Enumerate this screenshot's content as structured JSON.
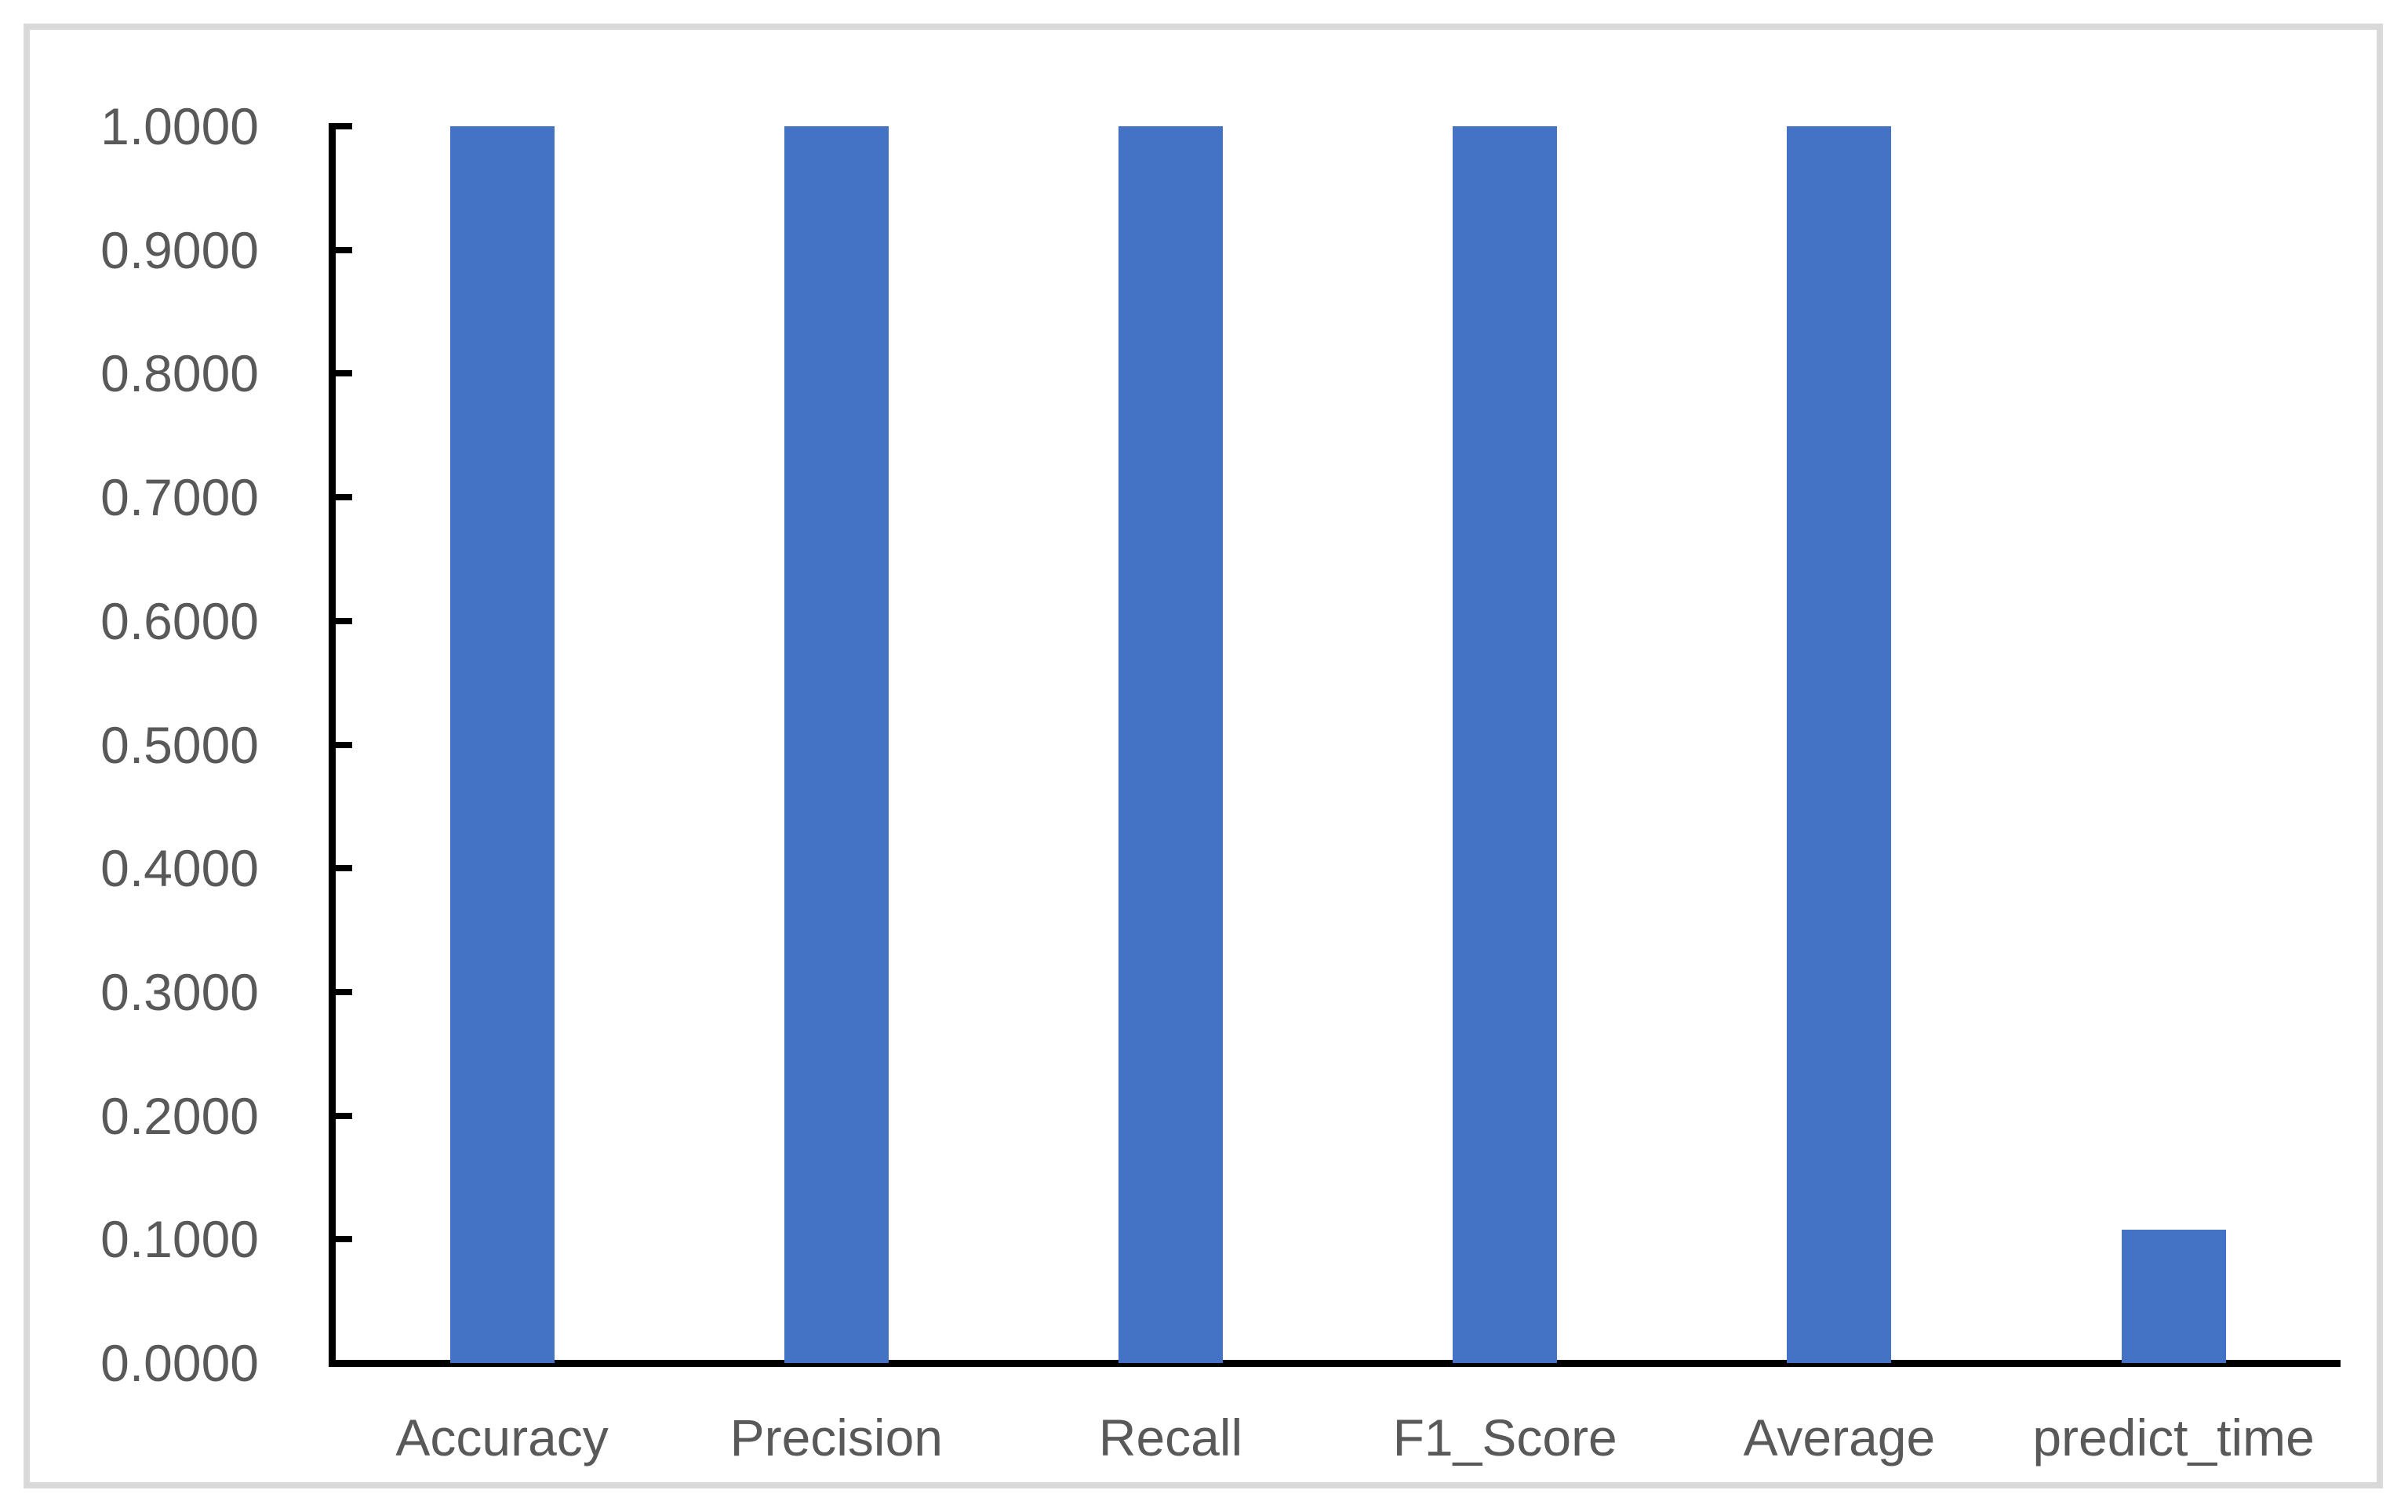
{
  "chart_data": {
    "type": "bar",
    "title": "",
    "xlabel": "",
    "ylabel": "",
    "categories": [
      "Accuracy",
      "Precision",
      "Recall",
      "F1_Score",
      "Average",
      "predict_time"
    ],
    "series": [
      {
        "name": "",
        "values": [
          1.0,
          1.0,
          1.0,
          1.0,
          1.0,
          0.108
        ]
      }
    ],
    "ylim": [
      0.0,
      1.0
    ],
    "ytick_step": 0.1,
    "ytick_labels": [
      "0.0000",
      "0.1000",
      "0.2000",
      "0.3000",
      "0.4000",
      "0.5000",
      "0.6000",
      "0.7000",
      "0.8000",
      "0.9000",
      "1.0000"
    ],
    "grid": false,
    "legend_position": "none",
    "colors": {
      "bar": "#4472C4",
      "axis": "#000000",
      "tick_label": "#595959",
      "frame_border": "#D9D9D9",
      "background": "#FFFFFF"
    }
  }
}
